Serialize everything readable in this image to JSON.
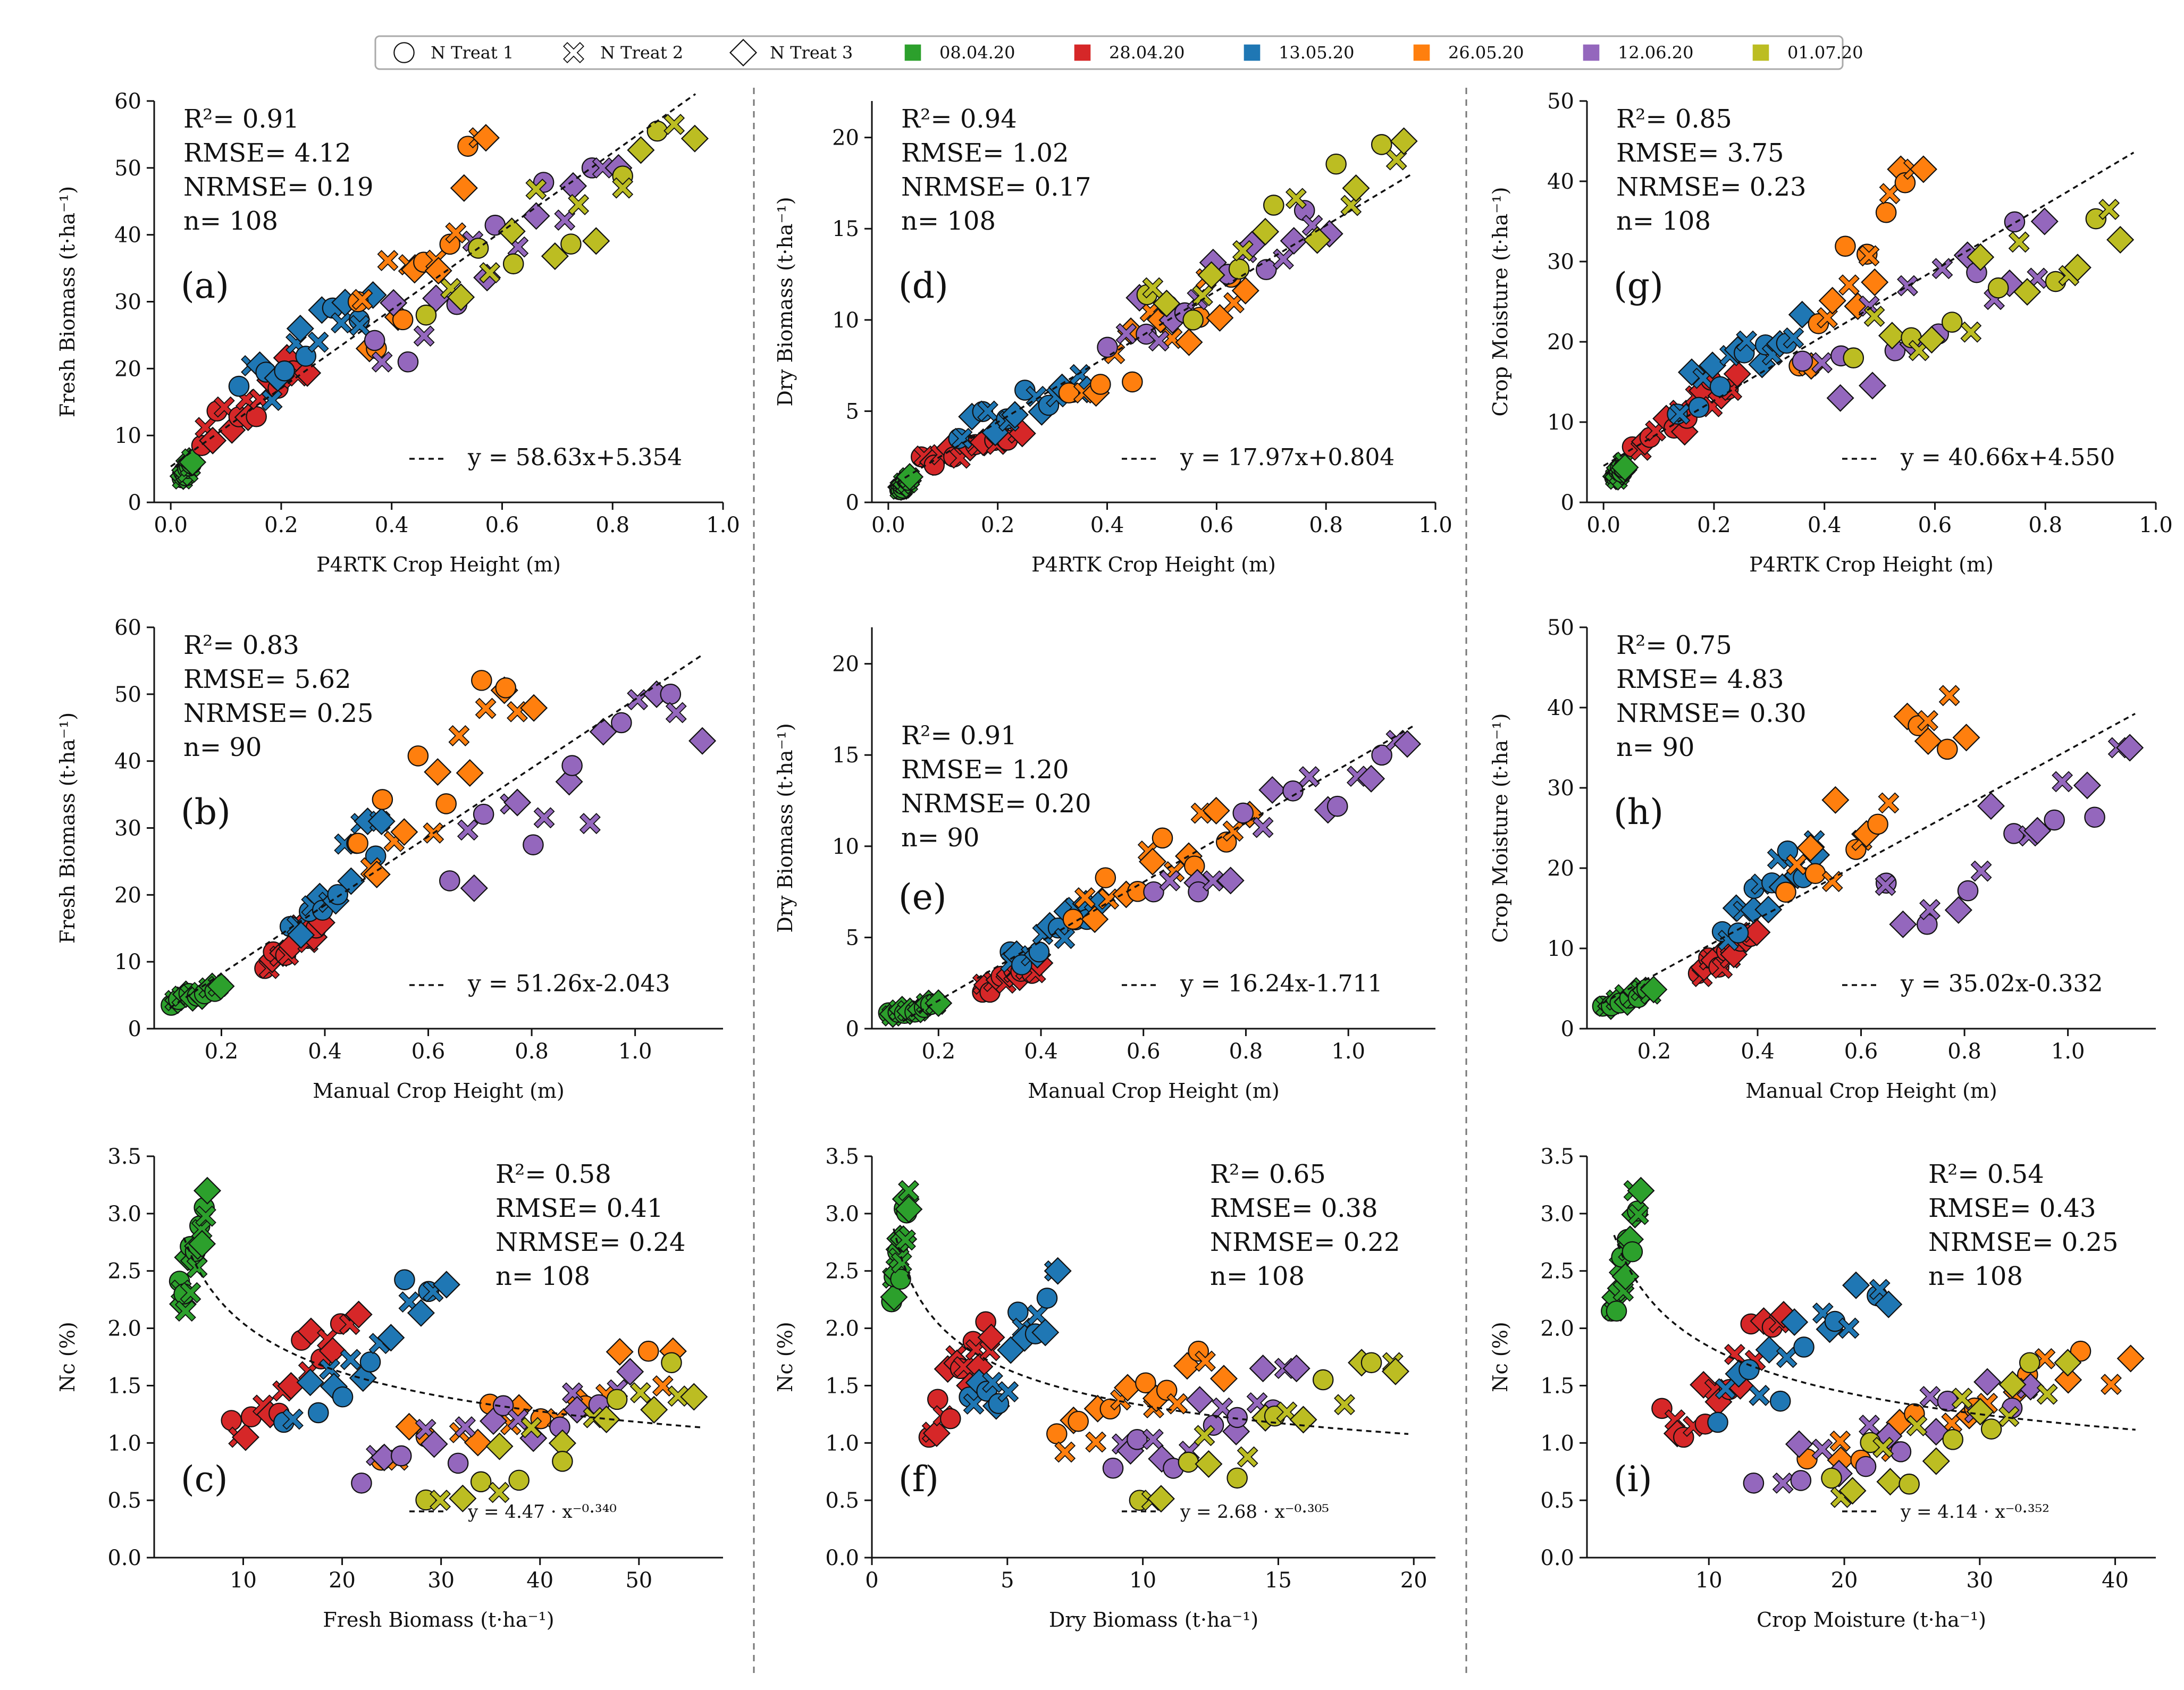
{
  "legend": {
    "items": [
      {
        "label": "N Treat 1",
        "marker": "circle",
        "color": "#ffffff"
      },
      {
        "label": "N Treat 2",
        "marker": "cross",
        "color": "#ffffff"
      },
      {
        "label": "N Treat 3",
        "marker": "diamond",
        "color": "#ffffff"
      },
      {
        "label": "08.04.20",
        "marker": "square",
        "color": "#2ca02c"
      },
      {
        "label": "28.04.20",
        "marker": "square",
        "color": "#d62728"
      },
      {
        "label": "13.05.20",
        "marker": "square",
        "color": "#1f77b4"
      },
      {
        "label": "26.05.20",
        "marker": "square",
        "color": "#ff7f0e"
      },
      {
        "label": "12.06.20",
        "marker": "square",
        "color": "#9467bd"
      },
      {
        "label": "01.07.20",
        "marker": "square",
        "color": "#bcbd22"
      }
    ]
  },
  "chart_data": [
    {
      "panel": "(a)",
      "type": "scatter",
      "ylabel": "Fresh Biomass (t·ha⁻¹)",
      "xlabel": "P4RTK Crop Height (m)",
      "xlim": [
        -0.03,
        1.0
      ],
      "ylim": [
        0,
        60
      ],
      "xticks": [
        0.0,
        0.2,
        0.4,
        0.6,
        0.8,
        1.0
      ],
      "xticklabels": [
        "0.0",
        "0.2",
        "0.4",
        "0.6",
        "0.8",
        "1.0"
      ],
      "yticks": [
        0,
        10,
        20,
        30,
        40,
        50,
        60
      ],
      "yticklabels": [
        "0",
        "10",
        "20",
        "30",
        "40",
        "50",
        "60"
      ],
      "stats": [
        "R²= 0.91",
        "RMSE= 4.12",
        "NRMSE= 0.19",
        "n= 108"
      ],
      "stats_pos": "top-left",
      "fit": {
        "kind": "linear",
        "a": 58.63,
        "b": 5.354,
        "range": [
          0.0,
          0.95
        ],
        "label": "y = 58.63x+5.354"
      },
      "series": [
        {
          "name": "08.04.20",
          "color": "#2ca02c",
          "x0": 0.02,
          "x1": 0.04,
          "y0": 3.5,
          "y1": 6.5
        },
        {
          "name": "28.04.20",
          "color": "#d62728",
          "x0": 0.05,
          "x1": 0.25,
          "y0": 8.5,
          "y1": 22
        },
        {
          "name": "13.05.20",
          "color": "#1f77b4",
          "x0": 0.12,
          "x1": 0.37,
          "y0": 15,
          "y1": 31
        },
        {
          "name": "26.05.20",
          "color": "#ff7f0e",
          "x0": 0.33,
          "x1": 0.58,
          "y0": 23,
          "y1": 54.5
        },
        {
          "name": "12.06.20",
          "color": "#9467bd",
          "x0": 0.35,
          "x1": 0.82,
          "y0": 21,
          "y1": 50
        },
        {
          "name": "01.07.20",
          "color": "#bcbd22",
          "x0": 0.45,
          "x1": 0.96,
          "y0": 28,
          "y1": 56.5
        }
      ]
    },
    {
      "panel": "(d)",
      "type": "scatter",
      "ylabel": "Dry Biomass (t·ha⁻¹)",
      "xlabel": "P4RTK Crop Height (m)",
      "xlim": [
        -0.03,
        1.0
      ],
      "ylim": [
        0,
        22
      ],
      "xticks": [
        0.0,
        0.2,
        0.4,
        0.6,
        0.8,
        1.0
      ],
      "xticklabels": [
        "0.0",
        "0.2",
        "0.4",
        "0.6",
        "0.8",
        "1.0"
      ],
      "yticks": [
        0,
        5,
        10,
        15,
        20
      ],
      "yticklabels": [
        "0",
        "5",
        "10",
        "15",
        "20"
      ],
      "stats": [
        "R²= 0.94",
        "RMSE= 1.02",
        "NRMSE= 0.17",
        "n= 108"
      ],
      "stats_pos": "top-left",
      "fit": {
        "kind": "linear",
        "a": 17.97,
        "b": 0.804,
        "range": [
          0.0,
          0.96
        ],
        "label": "y = 17.97x+0.804"
      },
      "series": [
        {
          "name": "08.04.20",
          "color": "#2ca02c",
          "x0": 0.02,
          "x1": 0.04,
          "y0": 0.7,
          "y1": 1.4
        },
        {
          "name": "28.04.20",
          "color": "#d62728",
          "x0": 0.05,
          "x1": 0.25,
          "y0": 2.0,
          "y1": 3.8
        },
        {
          "name": "13.05.20",
          "color": "#1f77b4",
          "x0": 0.12,
          "x1": 0.37,
          "y0": 3.5,
          "y1": 7.0
        },
        {
          "name": "26.05.20",
          "color": "#ff7f0e",
          "x0": 0.33,
          "x1": 0.67,
          "y0": 6.0,
          "y1": 12.5
        },
        {
          "name": "12.06.20",
          "color": "#9467bd",
          "x0": 0.4,
          "x1": 0.82,
          "y0": 8.5,
          "y1": 16.0
        },
        {
          "name": "01.07.20",
          "color": "#bcbd22",
          "x0": 0.45,
          "x1": 0.96,
          "y0": 10.0,
          "y1": 19.8
        }
      ]
    },
    {
      "panel": "(g)",
      "type": "scatter",
      "ylabel": "Crop Moisture (t·ha⁻¹)",
      "xlabel": "P4RTK Crop Height (m)",
      "xlim": [
        -0.03,
        1.0
      ],
      "ylim": [
        0,
        50
      ],
      "xticks": [
        0.0,
        0.2,
        0.4,
        0.6,
        0.8,
        1.0
      ],
      "xticklabels": [
        "0.0",
        "0.2",
        "0.4",
        "0.6",
        "0.8",
        "1.0"
      ],
      "yticks": [
        0,
        10,
        20,
        30,
        40,
        50
      ],
      "yticklabels": [
        "0",
        "10",
        "20",
        "30",
        "40",
        "50"
      ],
      "stats": [
        "R²= 0.85",
        "RMSE= 3.75",
        "NRMSE= 0.23",
        "n= 108"
      ],
      "stats_pos": "top-left",
      "fit": {
        "kind": "linear",
        "a": 40.66,
        "b": 4.55,
        "range": [
          0.0,
          0.96
        ],
        "label": "y = 40.66x+4.550"
      },
      "series": [
        {
          "name": "08.04.20",
          "color": "#2ca02c",
          "x0": 0.02,
          "x1": 0.04,
          "y0": 2.8,
          "y1": 5.0
        },
        {
          "name": "28.04.20",
          "color": "#d62728",
          "x0": 0.05,
          "x1": 0.25,
          "y0": 6.5,
          "y1": 16
        },
        {
          "name": "13.05.20",
          "color": "#1f77b4",
          "x0": 0.12,
          "x1": 0.37,
          "y0": 11,
          "y1": 24
        },
        {
          "name": "26.05.20",
          "color": "#ff7f0e",
          "x0": 0.35,
          "x1": 0.58,
          "y0": 17,
          "y1": 41.5
        },
        {
          "name": "12.06.20",
          "color": "#9467bd",
          "x0": 0.35,
          "x1": 0.82,
          "y0": 13,
          "y1": 35
        },
        {
          "name": "01.07.20",
          "color": "#bcbd22",
          "x0": 0.45,
          "x1": 0.96,
          "y0": 18,
          "y1": 36.5
        }
      ]
    },
    {
      "panel": "(b)",
      "type": "scatter",
      "ylabel": "Fresh Biomass (t·ha⁻¹)",
      "xlabel": "Manual Crop Height (m)",
      "xlim": [
        0.07,
        1.17
      ],
      "ylim": [
        0,
        60
      ],
      "xticks": [
        0.2,
        0.4,
        0.6,
        0.8,
        1.0
      ],
      "xticklabels": [
        "0.2",
        "0.4",
        "0.6",
        "0.8",
        "1.0"
      ],
      "yticks": [
        0,
        10,
        20,
        30,
        40,
        50,
        60
      ],
      "yticklabels": [
        "0",
        "10",
        "20",
        "30",
        "40",
        "50",
        "60"
      ],
      "stats": [
        "R²= 0.83",
        "RMSE= 5.62",
        "NRMSE= 0.25",
        "n= 90"
      ],
      "stats_pos": "top-left",
      "fit": {
        "kind": "linear",
        "a": 51.26,
        "b": -2.043,
        "range": [
          0.1,
          1.13
        ],
        "label": "y = 51.26x-2.043"
      },
      "series": [
        {
          "name": "08.04.20",
          "color": "#2ca02c",
          "x0": 0.1,
          "x1": 0.2,
          "y0": 3.5,
          "y1": 6.5
        },
        {
          "name": "28.04.20",
          "color": "#d62728",
          "x0": 0.28,
          "x1": 0.4,
          "y0": 9,
          "y1": 17
        },
        {
          "name": "13.05.20",
          "color": "#1f77b4",
          "x0": 0.33,
          "x1": 0.52,
          "y0": 14,
          "y1": 31
        },
        {
          "name": "26.05.20",
          "color": "#ff7f0e",
          "x0": 0.45,
          "x1": 0.81,
          "y0": 23,
          "y1": 54.5
        },
        {
          "name": "12.06.20",
          "color": "#9467bd",
          "x0": 0.62,
          "x1": 1.13,
          "y0": 21,
          "y1": 50
        }
      ]
    },
    {
      "panel": "(e)",
      "type": "scatter",
      "ylabel": "Dry Biomass (t·ha⁻¹)",
      "xlabel": "Manual Crop Height (m)",
      "xlim": [
        0.07,
        1.17
      ],
      "ylim": [
        0,
        22
      ],
      "xticks": [
        0.2,
        0.4,
        0.6,
        0.8,
        1.0
      ],
      "xticklabels": [
        "0.2",
        "0.4",
        "0.6",
        "0.8",
        "1.0"
      ],
      "yticks": [
        0,
        5,
        10,
        15,
        20
      ],
      "yticklabels": [
        "0",
        "5",
        "10",
        "15",
        "20"
      ],
      "stats": [
        "R²= 0.91",
        "RMSE= 1.20",
        "NRMSE= 0.20",
        "n= 90"
      ],
      "stats_pos": "upper-left",
      "fit": {
        "kind": "linear",
        "a": 16.24,
        "b": -1.711,
        "range": [
          0.13,
          1.13
        ],
        "label": "y = 16.24x-1.711"
      },
      "series": [
        {
          "name": "08.04.20",
          "color": "#2ca02c",
          "x0": 0.1,
          "x1": 0.2,
          "y0": 0.7,
          "y1": 1.4
        },
        {
          "name": "28.04.20",
          "color": "#d62728",
          "x0": 0.28,
          "x1": 0.4,
          "y0": 2.0,
          "y1": 3.6
        },
        {
          "name": "13.05.20",
          "color": "#1f77b4",
          "x0": 0.33,
          "x1": 0.52,
          "y0": 3.5,
          "y1": 7.0
        },
        {
          "name": "26.05.20",
          "color": "#ff7f0e",
          "x0": 0.45,
          "x1": 0.81,
          "y0": 6.0,
          "y1": 12.5
        },
        {
          "name": "12.06.20",
          "color": "#9467bd",
          "x0": 0.62,
          "x1": 1.13,
          "y0": 7.5,
          "y1": 15.8
        }
      ]
    },
    {
      "panel": "(h)",
      "type": "scatter",
      "ylabel": "Crop Moisture (t·ha⁻¹)",
      "xlabel": "Manual Crop Height (m)",
      "xlim": [
        0.07,
        1.17
      ],
      "ylim": [
        0,
        50
      ],
      "xticks": [
        0.2,
        0.4,
        0.6,
        0.8,
        1.0
      ],
      "xticklabels": [
        "0.2",
        "0.4",
        "0.6",
        "0.8",
        "1.0"
      ],
      "yticks": [
        0,
        10,
        20,
        30,
        40,
        50
      ],
      "yticklabels": [
        "0",
        "10",
        "20",
        "30",
        "40",
        "50"
      ],
      "stats": [
        "R²= 0.75",
        "RMSE= 4.83",
        "NRMSE= 0.30",
        "n= 90"
      ],
      "stats_pos": "top-left",
      "fit": {
        "kind": "linear",
        "a": 35.02,
        "b": -0.332,
        "range": [
          0.1,
          1.13
        ],
        "label": "y = 35.02x-0.332"
      },
      "series": [
        {
          "name": "08.04.20",
          "color": "#2ca02c",
          "x0": 0.1,
          "x1": 0.2,
          "y0": 2.8,
          "y1": 5.0
        },
        {
          "name": "28.04.20",
          "color": "#d62728",
          "x0": 0.28,
          "x1": 0.4,
          "y0": 6.5,
          "y1": 12
        },
        {
          "name": "13.05.20",
          "color": "#1f77b4",
          "x0": 0.33,
          "x1": 0.52,
          "y0": 11,
          "y1": 24
        },
        {
          "name": "26.05.20",
          "color": "#ff7f0e",
          "x0": 0.45,
          "x1": 0.81,
          "y0": 17,
          "y1": 41.5
        },
        {
          "name": "12.06.20",
          "color": "#9467bd",
          "x0": 0.62,
          "x1": 1.13,
          "y0": 13,
          "y1": 35
        }
      ]
    },
    {
      "panel": "(c)",
      "type": "scatter",
      "ylabel": "Nc (%)",
      "xlabel": "Fresh Biomass (t·ha⁻¹)",
      "xlim": [
        1,
        58.5
      ],
      "ylim": [
        0,
        3.5
      ],
      "xticks": [
        10,
        20,
        30,
        40,
        50
      ],
      "xticklabels": [
        "10",
        "20",
        "30",
        "40",
        "50"
      ],
      "yticks": [
        0,
        0.5,
        1,
        1.5,
        2,
        2.5,
        3,
        3.5
      ],
      "yticklabels": [
        "0.0",
        "0.5",
        "1.0",
        "1.5",
        "2.0",
        "2.5",
        "3.0",
        "3.5"
      ],
      "stats": [
        "R²= 0.58",
        "RMSE= 0.41",
        "NRMSE= 0.24",
        "n= 108"
      ],
      "stats_pos": "top-right",
      "fit": {
        "kind": "power",
        "a": 4.47,
        "b": -0.34,
        "range": [
          4,
          56.5
        ],
        "label": "y = 4.47 · x⁻⁰·³⁴⁰"
      },
      "series": [
        {
          "name": "08.04.20",
          "color": "#2ca02c",
          "x0": 3.5,
          "x1": 6.5,
          "y0": 2.15,
          "y1": 3.2
        },
        {
          "name": "28.04.20",
          "color": "#d62728",
          "x0": 8.5,
          "x1": 22,
          "y0": 1.05,
          "y1": 2.12
        },
        {
          "name": "13.05.20",
          "color": "#1f77b4",
          "x0": 14,
          "x1": 31,
          "y0": 1.18,
          "y1": 2.5
        },
        {
          "name": "26.05.20",
          "color": "#ff7f0e",
          "x0": 23,
          "x1": 55,
          "y0": 0.85,
          "y1": 1.8
        },
        {
          "name": "12.06.20",
          "color": "#9467bd",
          "x0": 21,
          "x1": 50,
          "y0": 0.65,
          "y1": 1.65
        },
        {
          "name": "01.07.20",
          "color": "#bcbd22",
          "x0": 28,
          "x1": 56.5,
          "y0": 0.5,
          "y1": 1.7
        }
      ]
    },
    {
      "panel": "(f)",
      "type": "scatter",
      "ylabel": "Nc (%)",
      "xlabel": "Dry Biomass (t·ha⁻¹)",
      "xlim": [
        0,
        20.8
      ],
      "ylim": [
        0,
        3.5
      ],
      "xticks": [
        0,
        5,
        10,
        15,
        20
      ],
      "xticklabels": [
        "0",
        "5",
        "10",
        "15",
        "20"
      ],
      "yticks": [
        0,
        0.5,
        1,
        1.5,
        2,
        2.5,
        3,
        3.5
      ],
      "yticklabels": [
        "0.0",
        "0.5",
        "1.0",
        "1.5",
        "2.0",
        "2.5",
        "3.0",
        "3.5"
      ],
      "stats": [
        "R²= 0.65",
        "RMSE= 0.38",
        "NRMSE= 0.22",
        "n= 108"
      ],
      "stats_pos": "top-right",
      "fit": {
        "kind": "power",
        "a": 2.68,
        "b": -0.305,
        "range": [
          0.8,
          19.8
        ],
        "label": "y = 2.68 · x⁻⁰·³⁰⁵"
      },
      "series": [
        {
          "name": "08.04.20",
          "color": "#2ca02c",
          "x0": 0.7,
          "x1": 1.4,
          "y0": 2.15,
          "y1": 3.2
        },
        {
          "name": "28.04.20",
          "color": "#d62728",
          "x0": 2.0,
          "x1": 4.5,
          "y0": 1.05,
          "y1": 2.12
        },
        {
          "name": "13.05.20",
          "color": "#1f77b4",
          "x0": 3.5,
          "x1": 7.0,
          "y0": 1.18,
          "y1": 2.5
        },
        {
          "name": "26.05.20",
          "color": "#ff7f0e",
          "x0": 6.5,
          "x1": 13.0,
          "y0": 0.85,
          "y1": 1.8
        },
        {
          "name": "12.06.20",
          "color": "#9467bd",
          "x0": 8.5,
          "x1": 16.0,
          "y0": 0.65,
          "y1": 1.65
        },
        {
          "name": "01.07.20",
          "color": "#bcbd22",
          "x0": 9.5,
          "x1": 19.8,
          "y0": 0.5,
          "y1": 1.7
        }
      ]
    },
    {
      "panel": "(i)",
      "type": "scatter",
      "ylabel": "Nc (%)",
      "xlabel": "Crop Moisture (t·ha⁻¹)",
      "xlim": [
        1,
        43
      ],
      "ylim": [
        0,
        3.5
      ],
      "xticks": [
        10,
        20,
        30,
        40
      ],
      "xticklabels": [
        "10",
        "20",
        "30",
        "40"
      ],
      "yticks": [
        0,
        0.5,
        1,
        1.5,
        2,
        2.5,
        3,
        3.5
      ],
      "yticklabels": [
        "0.0",
        "0.5",
        "1.0",
        "1.5",
        "2.0",
        "2.5",
        "3.0",
        "3.5"
      ],
      "stats": [
        "R²= 0.54",
        "RMSE= 0.43",
        "NRMSE= 0.25",
        "n= 108"
      ],
      "stats_pos": "top-right",
      "fit": {
        "kind": "power",
        "a": 4.14,
        "b": -0.352,
        "range": [
          3,
          41.5
        ],
        "label": "y = 4.14 · x⁻⁰·³⁵²"
      },
      "series": [
        {
          "name": "08.04.20",
          "color": "#2ca02c",
          "x0": 2.8,
          "x1": 5.0,
          "y0": 2.15,
          "y1": 3.2
        },
        {
          "name": "28.04.20",
          "color": "#d62728",
          "x0": 6.5,
          "x1": 16,
          "y0": 1.05,
          "y1": 2.12
        },
        {
          "name": "13.05.20",
          "color": "#1f77b4",
          "x0": 10,
          "x1": 24,
          "y0": 1.18,
          "y1": 2.5
        },
        {
          "name": "26.05.20",
          "color": "#ff7f0e",
          "x0": 17,
          "x1": 41.5,
          "y0": 0.85,
          "y1": 1.8
        },
        {
          "name": "12.06.20",
          "color": "#9467bd",
          "x0": 13,
          "x1": 35,
          "y0": 0.65,
          "y1": 1.65
        },
        {
          "name": "01.07.20",
          "color": "#bcbd22",
          "x0": 18,
          "x1": 36.5,
          "y0": 0.5,
          "y1": 1.7
        }
      ]
    }
  ]
}
